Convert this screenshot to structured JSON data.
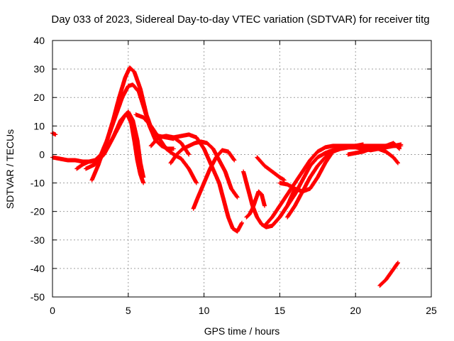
{
  "chart_data": {
    "type": "scatter",
    "title": "Day 033 of 2023, Sidereal Day-to-day VTEC variation (SDTVAR) for receiver titg",
    "xlabel": "GPS time / hours",
    "ylabel": "SDTVAR / TECUs",
    "xlim": [
      0,
      25
    ],
    "ylim": [
      -50,
      40
    ],
    "xticks": [
      0,
      5,
      10,
      15,
      20,
      25
    ],
    "yticks": [
      -50,
      -40,
      -30,
      -20,
      -10,
      0,
      10,
      20,
      30,
      40
    ],
    "grid": true,
    "marker": "plus",
    "color": "#ff0000",
    "series": [
      {
        "name": "arc-1",
        "x": [
          0.0,
          0.2
        ],
        "y": [
          7.5,
          7.0
        ]
      },
      {
        "name": "arc-2",
        "x": [
          0.0,
          0.5,
          1.0,
          1.5,
          2.0,
          2.5,
          3.0
        ],
        "y": [
          -1.0,
          -1.5,
          -2.0,
          -2.0,
          -2.5,
          -2.5,
          -2.0
        ]
      },
      {
        "name": "arc-3",
        "x": [
          1.6,
          2.0,
          2.4,
          2.8,
          3.2,
          3.6,
          4.0,
          4.4,
          4.8,
          5.1,
          5.4,
          5.8,
          6.2,
          6.6,
          7.0,
          7.5,
          8.0
        ],
        "y": [
          -5.0,
          -3.5,
          -2.5,
          -2.0,
          0.0,
          5.0,
          12.0,
          20.0,
          27.0,
          30.5,
          29.0,
          23.0,
          14.0,
          8.0,
          6.5,
          6.0,
          5.5
        ]
      },
      {
        "name": "arc-4",
        "x": [
          2.6,
          3.0,
          3.4,
          3.8,
          4.2,
          4.6,
          5.0,
          5.3,
          5.7,
          6.0,
          6.4,
          6.8,
          7.2,
          7.6,
          8.0
        ],
        "y": [
          -9.0,
          -4.0,
          2.0,
          8.0,
          14.0,
          20.0,
          24.0,
          24.5,
          22.0,
          17.0,
          10.0,
          5.0,
          3.0,
          2.0,
          2.0
        ]
      },
      {
        "name": "arc-5",
        "x": [
          2.2,
          2.8,
          3.4,
          4.0,
          4.5,
          4.9,
          5.2,
          5.4,
          5.6,
          5.8,
          6.0
        ],
        "y": [
          -5.0,
          -3.5,
          0.0,
          6.0,
          12.0,
          14.5,
          11.0,
          5.0,
          -2.0,
          -7.0,
          -10.0
        ]
      },
      {
        "name": "arc-6",
        "x": [
          3.0,
          3.6,
          4.2,
          4.7,
          5.0,
          5.3,
          5.6,
          5.8,
          6.0
        ],
        "y": [
          -2.5,
          2.0,
          8.0,
          13.0,
          15.0,
          12.0,
          5.0,
          -3.0,
          -8.0
        ]
      },
      {
        "name": "arc-7",
        "x": [
          5.5,
          6.0,
          6.5,
          7.0,
          7.5,
          8.0,
          8.5,
          9.0,
          9.5
        ],
        "y": [
          14.0,
          13.0,
          10.0,
          6.0,
          2.0,
          0.0,
          -1.5,
          -5.0,
          -10.0
        ]
      },
      {
        "name": "arc-8",
        "x": [
          6.5,
          7.0,
          7.5,
          8.0,
          8.5,
          9.0
        ],
        "y": [
          3.0,
          6.0,
          6.5,
          6.0,
          4.0,
          0.0
        ]
      },
      {
        "name": "arc-9",
        "x": [
          8.0,
          8.5,
          9.0,
          9.5,
          10.0,
          10.5,
          11.0,
          11.3,
          11.6,
          11.9,
          12.2,
          12.5
        ],
        "y": [
          6.0,
          6.5,
          7.0,
          6.0,
          2.0,
          -4.0,
          -10.0,
          -16.0,
          -22.0,
          -26.0,
          -27.0,
          -24.0
        ]
      },
      {
        "name": "arc-10",
        "x": [
          7.8,
          8.2,
          8.6,
          9.0,
          9.4,
          9.8,
          10.2,
          10.6,
          11.0,
          11.4,
          11.8,
          12.2
        ],
        "y": [
          -3.0,
          0.0,
          2.0,
          3.0,
          4.0,
          4.5,
          4.0,
          2.0,
          -2.0,
          -6.0,
          -12.0,
          -15.0
        ]
      },
      {
        "name": "arc-11",
        "x": [
          9.3,
          9.6,
          10.0,
          10.4,
          10.8,
          11.2,
          11.6,
          12.0
        ],
        "y": [
          -19.0,
          -15.0,
          -10.0,
          -5.0,
          -1.0,
          1.5,
          1.0,
          -2.0
        ]
      },
      {
        "name": "arc-12",
        "x": [
          12.8,
          13.0,
          13.2,
          13.4,
          13.6,
          13.8,
          14.0
        ],
        "y": [
          -22.0,
          -21.0,
          -19.0,
          -16.0,
          -13.0,
          -14.0,
          -18.0
        ]
      },
      {
        "name": "arc-13",
        "x": [
          12.6,
          12.9,
          13.2,
          13.5,
          13.8,
          14.1,
          14.5,
          15.0,
          15.5,
          16.0
        ],
        "y": [
          -6.0,
          -12.0,
          -18.0,
          -22.0,
          -24.5,
          -25.5,
          -25.0,
          -22.0,
          -18.0,
          -12.0
        ]
      },
      {
        "name": "arc-14",
        "x": [
          13.5,
          14.0,
          14.5,
          15.0,
          15.3
        ],
        "y": [
          -1.0,
          -4.0,
          -6.0,
          -8.0,
          -9.0
        ]
      },
      {
        "name": "arc-15",
        "x": [
          14.0,
          14.5,
          15.0,
          15.5,
          16.0,
          16.5,
          17.0,
          17.5,
          18.0,
          18.5,
          19.0,
          19.5,
          20.0,
          20.5,
          21.0,
          21.5,
          22.0,
          22.5,
          23.0
        ],
        "y": [
          -25.0,
          -22.0,
          -18.0,
          -14.0,
          -10.0,
          -6.0,
          -2.0,
          1.0,
          2.5,
          3.0,
          3.0,
          3.0,
          3.0,
          3.0,
          3.0,
          3.0,
          3.0,
          3.0,
          3.0
        ]
      },
      {
        "name": "arc-16",
        "x": [
          14.5,
          15.0,
          15.5,
          16.0,
          16.5,
          17.0,
          17.5,
          18.0,
          18.5,
          19.0,
          19.5,
          20.0,
          20.5
        ],
        "y": [
          -25.0,
          -22.0,
          -18.0,
          -14.0,
          -9.0,
          -4.0,
          -1.0,
          0.5,
          1.5,
          2.0,
          2.5,
          3.0,
          3.5
        ]
      },
      {
        "name": "arc-17",
        "x": [
          15.5,
          16.0,
          16.5,
          17.0,
          17.5,
          18.0,
          18.5,
          19.0,
          19.5,
          20.0,
          20.5,
          21.0,
          21.5,
          22.0,
          22.5,
          23.0
        ],
        "y": [
          -22.0,
          -18.0,
          -13.0,
          -8.0,
          -4.0,
          -1.0,
          1.0,
          2.0,
          2.5,
          2.5,
          2.0,
          1.5,
          2.0,
          2.5,
          3.0,
          3.5
        ]
      },
      {
        "name": "arc-18",
        "x": [
          15.0,
          15.5,
          16.0,
          16.5,
          17.0,
          17.5,
          18.0,
          18.5
        ],
        "y": [
          -10.0,
          -10.5,
          -12.0,
          -13.0,
          -12.0,
          -8.0,
          -3.0,
          1.0
        ]
      },
      {
        "name": "arc-19",
        "x": [
          18.0,
          18.5,
          19.0,
          19.5,
          20.0,
          20.5,
          21.0,
          21.5,
          22.0,
          22.5,
          22.8
        ],
        "y": [
          0.0,
          1.0,
          2.0,
          2.5,
          3.0,
          3.0,
          2.5,
          2.0,
          1.0,
          -1.0,
          -3.0
        ]
      },
      {
        "name": "arc-20",
        "x": [
          19.5,
          20.0,
          20.5,
          21.0,
          21.5,
          22.0,
          22.5,
          22.9
        ],
        "y": [
          0.0,
          0.5,
          1.0,
          2.0,
          2.5,
          3.0,
          4.0,
          2.0
        ]
      },
      {
        "name": "arc-21",
        "x": [
          21.6,
          22.0,
          22.4,
          22.8
        ],
        "y": [
          -46.0,
          -44.0,
          -41.0,
          -38.0
        ]
      }
    ]
  }
}
